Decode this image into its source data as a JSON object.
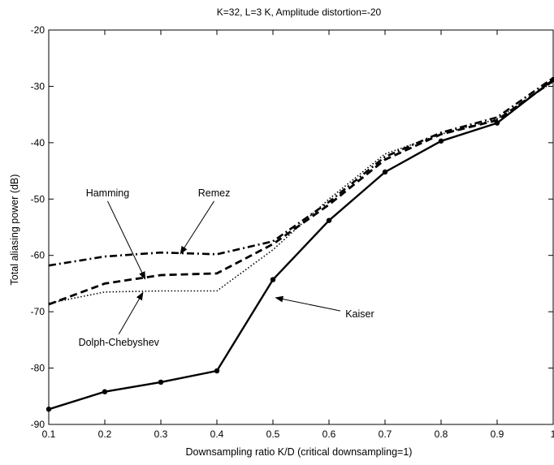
{
  "chart_data": {
    "type": "line",
    "title": "K=32, L=3 K, Amplitude distortion=-20",
    "xlabel": "Downsampling ratio K/D (critical downsampling=1)",
    "ylabel": "Total aliasing power (dB)",
    "xlim": [
      0.1,
      1
    ],
    "ylim": [
      -90,
      -20
    ],
    "xticks": [
      "0.1",
      "0.2",
      "0.3",
      "0.4",
      "0.5",
      "0.6",
      "0.7",
      "0.8",
      "0.9",
      "1"
    ],
    "yticks": [
      "-20",
      "-30",
      "-40",
      "-50",
      "-60",
      "-70",
      "-80",
      "-90"
    ],
    "grid": false,
    "series": [
      {
        "name": "Remez",
        "style": "dashdot",
        "x": [
          0.1,
          0.2,
          0.3,
          0.4,
          0.5,
          0.6,
          0.7,
          0.8,
          0.9,
          1.0
        ],
        "y": [
          -61.8,
          -60.2,
          -59.5,
          -59.8,
          -57.5,
          -50.5,
          -42.5,
          -38.2,
          -35.5,
          -28.5
        ]
      },
      {
        "name": "Hamming",
        "style": "dashed",
        "x": [
          0.1,
          0.2,
          0.3,
          0.4,
          0.5,
          0.6,
          0.7,
          0.8,
          0.9,
          1.0
        ],
        "y": [
          -68.7,
          -65.0,
          -63.5,
          -63.2,
          -58.0,
          -51.0,
          -43.0,
          -38.5,
          -36.0,
          -29.0
        ]
      },
      {
        "name": "Dolph-Chebyshev",
        "style": "dotted",
        "x": [
          0.1,
          0.2,
          0.3,
          0.4,
          0.5,
          0.6,
          0.7,
          0.8,
          0.9,
          1.0
        ],
        "y": [
          -68.5,
          -66.5,
          -66.3,
          -66.3,
          -59.0,
          -50.0,
          -42.0,
          -38.5,
          -35.8,
          -29.2
        ]
      },
      {
        "name": "Kaiser",
        "style": "solid-markers",
        "x": [
          0.1,
          0.2,
          0.3,
          0.4,
          0.5,
          0.6,
          0.7,
          0.8,
          0.9,
          1.0
        ],
        "y": [
          -87.3,
          -84.2,
          -82.5,
          -80.5,
          -64.3,
          -53.8,
          -45.2,
          -39.7,
          -36.5,
          -28.8
        ]
      }
    ],
    "annotations": [
      {
        "text": "Hamming",
        "x": 0.205,
        "y": -49.5,
        "arrow_to_x": 0.272,
        "arrow_to_y": -64.2
      },
      {
        "text": "Remez",
        "x": 0.395,
        "y": -49.5,
        "arrow_to_x": 0.335,
        "arrow_to_y": -59.7
      },
      {
        "text": "Dolph-Chebyshev",
        "x": 0.225,
        "y": -76.0,
        "arrow_to_x": 0.268,
        "arrow_to_y": -66.6
      },
      {
        "text": "Kaiser",
        "x": 0.655,
        "y": -71.0,
        "arrow_to_x": 0.505,
        "arrow_to_y": -67.5
      }
    ]
  }
}
